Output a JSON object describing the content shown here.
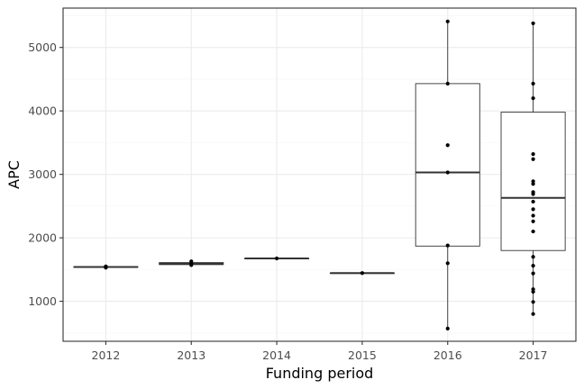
{
  "chart_data": {
    "type": "boxplot",
    "xlabel": "Funding period",
    "ylabel": "APC",
    "categories": [
      "2012",
      "2013",
      "2014",
      "2015",
      "2016",
      "2017"
    ],
    "ylim": [
      370,
      5620
    ],
    "yticks": [
      1000,
      2000,
      3000,
      4000,
      5000
    ],
    "grid": true,
    "theme": "bw",
    "boxes": [
      {
        "category": "2012",
        "min": 1530,
        "q1": 1535,
        "median": 1540,
        "q3": 1545,
        "max": 1550
      },
      {
        "category": "2013",
        "min": 1570,
        "q1": 1578,
        "median": 1595,
        "q3": 1610,
        "max": 1630
      },
      {
        "category": "2014",
        "min": 1675,
        "q1": 1675,
        "median": 1675,
        "q3": 1675,
        "max": 1675
      },
      {
        "category": "2015",
        "min": 1445,
        "q1": 1445,
        "median": 1445,
        "q3": 1445,
        "max": 1445
      },
      {
        "category": "2016",
        "min": 570,
        "q1": 1870,
        "median": 3030,
        "q3": 4430,
        "max": 5410
      },
      {
        "category": "2017",
        "min": 800,
        "q1": 1800,
        "median": 2630,
        "q3": 3980,
        "max": 5380
      }
    ],
    "points": [
      {
        "category": "2012",
        "values": [
          1530,
          1545,
          1550
        ]
      },
      {
        "category": "2013",
        "values": [
          1570,
          1595,
          1630
        ]
      },
      {
        "category": "2014",
        "values": [
          1675
        ]
      },
      {
        "category": "2015",
        "values": [
          1445
        ]
      },
      {
        "category": "2016",
        "values": [
          570,
          1600,
          1880,
          3030,
          3460,
          4430,
          5410
        ]
      },
      {
        "category": "2017",
        "values": [
          800,
          990,
          1150,
          1190,
          1440,
          1560,
          1700,
          2100,
          2260,
          2350,
          2450,
          2570,
          2690,
          2720,
          2850,
          2890,
          3240,
          3320,
          4200,
          4430,
          5380
        ]
      }
    ],
    "colors": {
      "panel_border": "#333333",
      "grid_major": "#ebebeb",
      "grid_minor": "#f5f5f5",
      "box_stroke": "#333333",
      "box_fill": "#ffffff",
      "point": "#000000"
    }
  }
}
